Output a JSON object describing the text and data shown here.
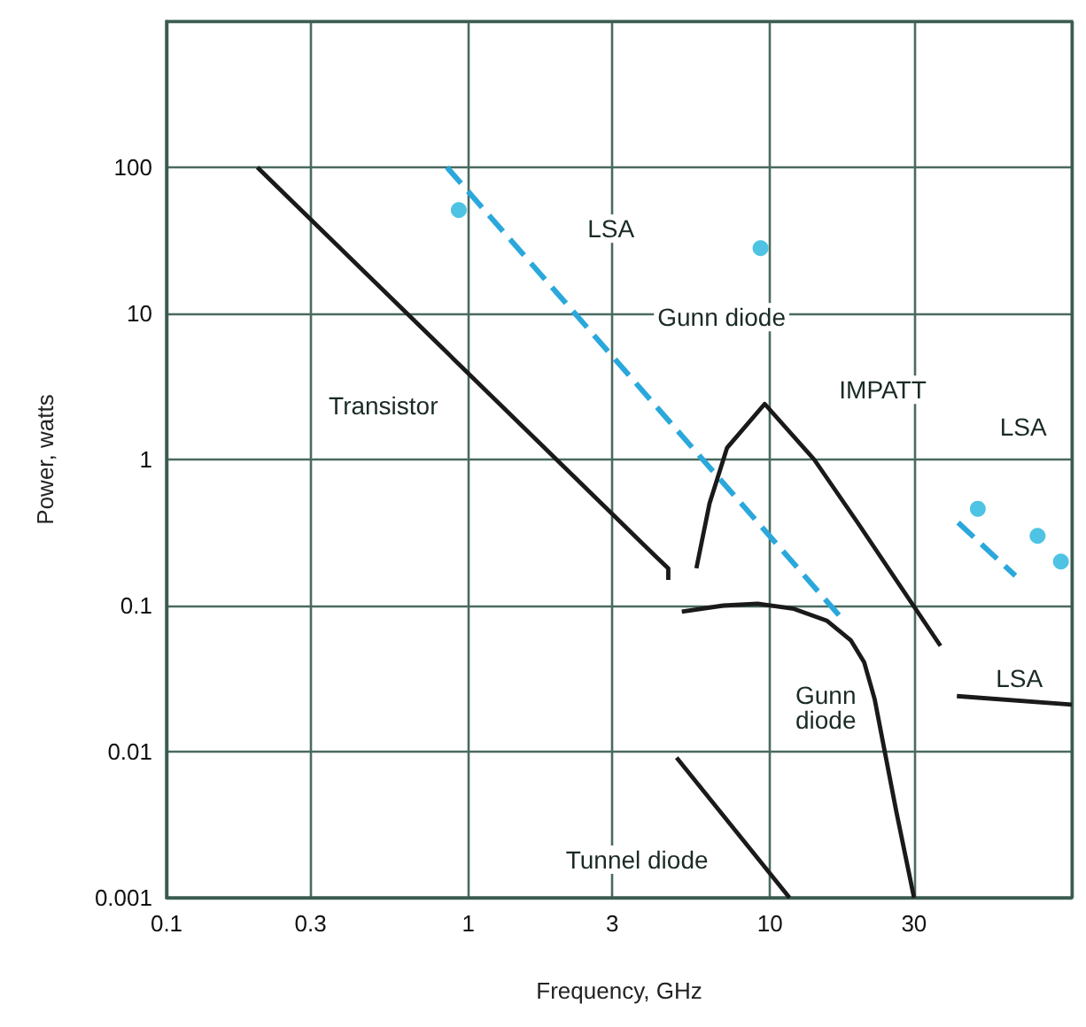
{
  "chart_data": {
    "type": "line",
    "xlabel": "Frequency, GHz",
    "ylabel": "Power, watts",
    "log": "xy",
    "grid": true,
    "legend": false,
    "xlim": [
      0.1,
      100
    ],
    "xticks": [
      0.1,
      0.3,
      1,
      3,
      10,
      30,
      {
        "value": 100,
        "label": null
      }
    ],
    "ylim": [
      0.001,
      1000
    ],
    "yticks": [
      0.001,
      0.01,
      0.1,
      1,
      10,
      100,
      {
        "value": 1000,
        "label": null
      }
    ],
    "series": [
      {
        "name": "Transistor",
        "color": "#1a1a1a",
        "line_style": "solid",
        "marker": "none",
        "x": [
          0.2,
          4.15,
          4.6,
          4.6
        ],
        "values": [
          100,
          0.22,
          0.18,
          0.15
        ]
      },
      {
        "name": "Gunn diode",
        "color": "#2aa8dc",
        "line_style": "dashed",
        "marker": "none",
        "x": [
          0.85,
          17
        ],
        "values": [
          100,
          0.085
        ]
      },
      {
        "color": "#2aa8dc",
        "line_style": "dashed",
        "marker": "none",
        "x": [
          42,
          65
        ],
        "values": [
          0.37,
          0.16
        ]
      },
      {
        "name": "IMPATT",
        "color": "#1a1a1a",
        "line_style": "solid",
        "marker": "none",
        "x": [
          5.7,
          6.3,
          7.2,
          9.6,
          14,
          19.5,
          36.7
        ],
        "values": [
          0.18,
          0.5,
          1.2,
          2.4,
          1,
          0.37,
          0.053
        ]
      },
      {
        "color": "#1a1a1a",
        "line_style": "solid",
        "marker": "none",
        "x": [
          5.1,
          7,
          9.1,
          12,
          15.4,
          18.5,
          20.5,
          22.2,
          26.2,
          30
        ],
        "values": [
          0.091,
          0.1,
          0.103,
          0.095,
          0.079,
          0.058,
          0.041,
          0.023,
          0.0039,
          0.001
        ]
      },
      {
        "name": "Tunnel diode",
        "color": "#1a1a1a",
        "line_style": "solid",
        "marker": "none",
        "x": [
          4.9,
          11.6
        ],
        "values": [
          0.0091,
          0.001
        ]
      },
      {
        "color": "#1a1a1a",
        "line_style": "solid",
        "marker": "none",
        "x": [
          41.6,
          100
        ],
        "values": [
          0.024,
          0.021
        ]
      },
      {
        "type": "scatter",
        "color": "#22b4dc",
        "marker": "circle",
        "x": [
          0.93,
          9.3,
          48.8,
          77,
          92
        ],
        "values": [
          51,
          28,
          0.46,
          0.3,
          0.2
        ]
      }
    ],
    "annotations": [
      {
        "text": "LSA",
        "x": 2.97,
        "y": 38
      },
      {
        "text": "LSA",
        "x": 69,
        "y": 1.67
      },
      {
        "text": "Gunn\ndiode",
        "x": 15.3,
        "y": 0.02
      },
      {
        "text": "LSA",
        "x": 67,
        "y": 0.032
      }
    ]
  }
}
